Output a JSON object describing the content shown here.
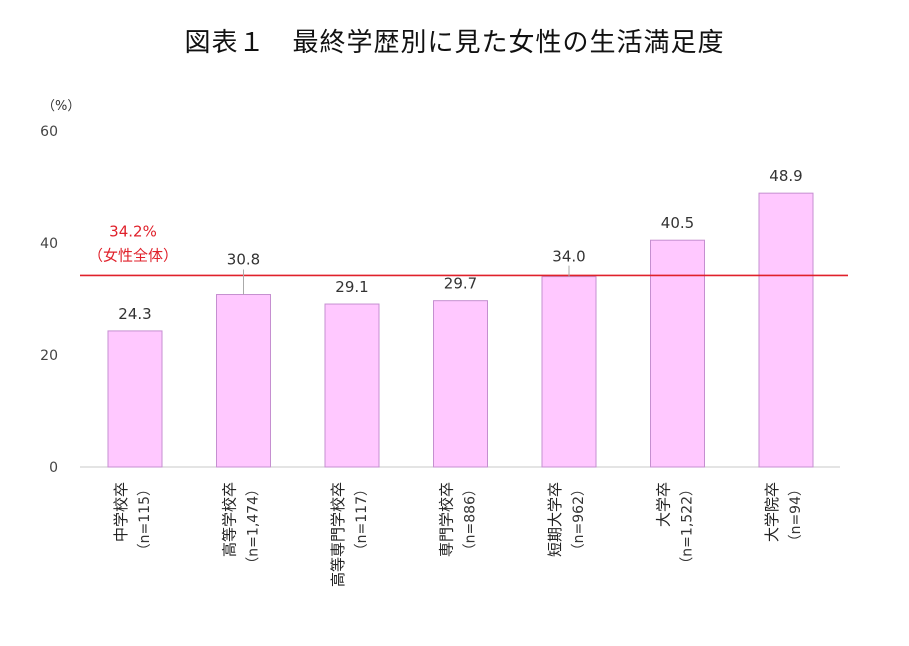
{
  "title": "図表１　最終学歴別に見た女性の生活満足度",
  "chart_data": {
    "type": "bar",
    "y_unit": "（%）",
    "ylim": [
      0,
      60
    ],
    "y_ticks": [
      "0",
      "20",
      "40",
      "60"
    ],
    "grid": false,
    "bar_color": "#ffc8ff",
    "bar_border_color": "#c58fd0",
    "categories": [
      {
        "name": "中学校卒",
        "n": "（n=115）"
      },
      {
        "name": "高等学校卒",
        "n": "（n=1,474）"
      },
      {
        "name": "高等専門学校卒",
        "n": "（n=117）"
      },
      {
        "name": "専門学校卒",
        "n": "（n=886）"
      },
      {
        "name": "短期大学卒",
        "n": "（n=962）"
      },
      {
        "name": "大学卒",
        "n": "（n=1,522）"
      },
      {
        "name": "大学院卒",
        "n": "（n=94）"
      }
    ],
    "values": [
      24.3,
      30.8,
      29.1,
      29.7,
      34.0,
      40.5,
      48.9
    ],
    "value_labels": [
      "24.3",
      "30.8",
      "29.1",
      "29.7",
      "34.0",
      "40.5",
      "48.9"
    ],
    "reference_line": {
      "value": 34.2,
      "label": "34.2%",
      "sublabel": "（女性全体）",
      "color": "#e0212b"
    }
  }
}
